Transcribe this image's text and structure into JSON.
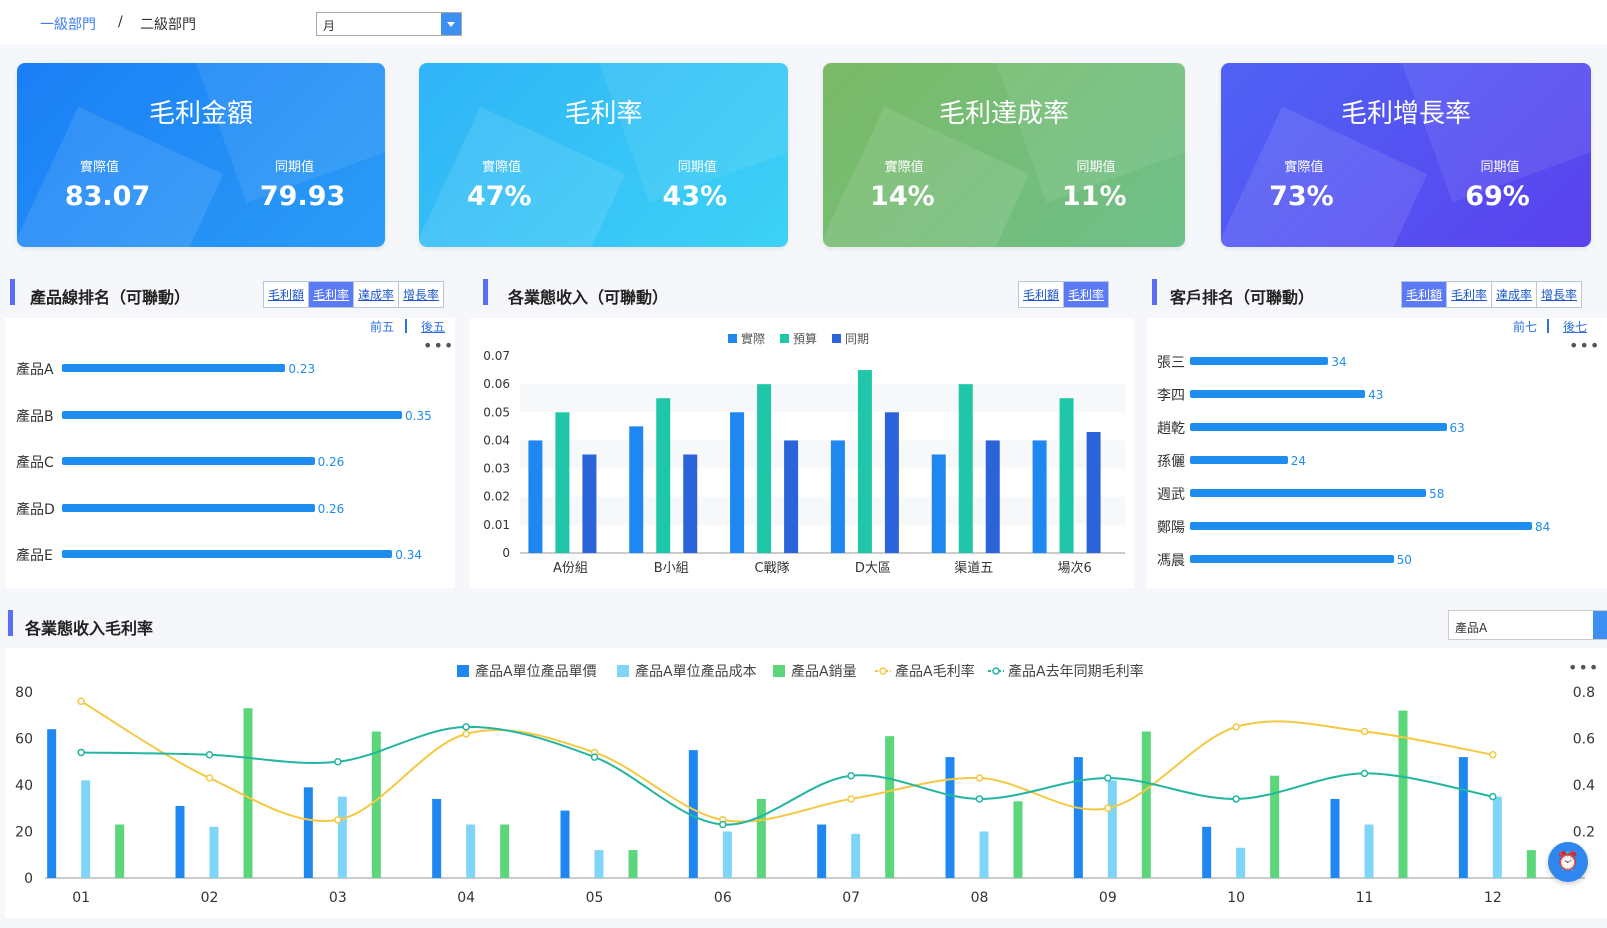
{
  "breadcrumb": {
    "level1": "一級部門",
    "separator": "/",
    "level2": "二級部門"
  },
  "period_select": {
    "value": "月"
  },
  "kpis": [
    {
      "title": "毛利金額",
      "actual_label": "實際值",
      "actual": "83.07",
      "prior_label": "同期值",
      "prior": "79.93",
      "color_from": "#1a7ff5",
      "color_to": "#2b9cf7"
    },
    {
      "title": "毛利率",
      "actual_label": "實際值",
      "actual": "47%",
      "prior_label": "同期值",
      "prior": "43%",
      "color_from": "#2fb4f7",
      "color_to": "#3dd2f5"
    },
    {
      "title": "毛利達成率",
      "actual_label": "實際值",
      "actual": "14%",
      "prior_label": "同期值",
      "prior": "11%",
      "color_from": "#7aba66",
      "color_to": "#6fc08a"
    },
    {
      "title": "毛利增長率",
      "actual_label": "實際值",
      "actual": "73%",
      "prior_label": "同期值",
      "prior": "69%",
      "color_from": "#4f63f5",
      "color_to": "#5a42ee"
    }
  ],
  "product_rank": {
    "title": "產品線排名（可聯動）",
    "tabs": [
      "毛利額",
      "毛利率",
      "達成率",
      "增長率"
    ],
    "active_tab": 1,
    "link_top": "前五",
    "link_bottom": "後五",
    "menu": "•••",
    "chart_data": {
      "type": "bar",
      "orientation": "horizontal",
      "categories": [
        "產品A",
        "產品B",
        "產品C",
        "產品D",
        "產品E"
      ],
      "values": [
        0.23,
        0.35,
        0.26,
        0.26,
        0.34
      ],
      "value_labels": [
        "0.23",
        "0.35",
        "0.26",
        "0.26",
        "0.34"
      ]
    }
  },
  "business_income": {
    "title": "各業態收入（可聯動）",
    "tabs": [
      "毛利額",
      "毛利率"
    ],
    "active_tab": 1,
    "chart_data": {
      "type": "bar",
      "categories": [
        "A份組",
        "B小組",
        "C戰隊",
        "D大區",
        "渠道五",
        "場次6"
      ],
      "series": [
        {
          "name": "實際",
          "color": "#1e88f0",
          "values": [
            0.04,
            0.045,
            0.05,
            0.04,
            0.035,
            0.04
          ]
        },
        {
          "name": "預算",
          "color": "#1fc7a8",
          "values": [
            0.05,
            0.055,
            0.06,
            0.065,
            0.06,
            0.055
          ]
        },
        {
          "name": "同期",
          "color": "#2b63d9",
          "values": [
            0.035,
            0.035,
            0.04,
            0.05,
            0.04,
            0.043
          ]
        }
      ],
      "ylim": [
        0,
        0.07
      ],
      "yticks": [
        "0",
        "0.01",
        "0.02",
        "0.03",
        "0.04",
        "0.05",
        "0.06",
        "0.07"
      ]
    }
  },
  "customer_rank": {
    "title": "客戶排名（可聯動）",
    "tabs": [
      "毛利額",
      "毛利率",
      "達成率",
      "增長率"
    ],
    "active_tab": 0,
    "link_top": "前七",
    "link_bottom": "後七",
    "menu": "•••",
    "chart_data": {
      "type": "bar",
      "orientation": "horizontal",
      "categories": [
        "張三",
        "李四",
        "趙乾",
        "孫儷",
        "週武",
        "鄭陽",
        "馮晨"
      ],
      "values": [
        34,
        43,
        63,
        24,
        58,
        84,
        50
      ],
      "value_labels": [
        "34",
        "43",
        "63",
        "24",
        "58",
        "84",
        "50"
      ]
    }
  },
  "margin_section": {
    "title": "各業態收入毛利率",
    "product_select": "產品A",
    "menu": "•••",
    "chart_data": {
      "type": "bar",
      "categories": [
        "01",
        "02",
        "03",
        "04",
        "05",
        "06",
        "07",
        "08",
        "09",
        "10",
        "11",
        "12"
      ],
      "series": [
        {
          "name": "產品A單位產品單價",
          "kind": "bar",
          "axis": "left",
          "color": "#1e88f0",
          "values": [
            64,
            31,
            39,
            34,
            29,
            55,
            23,
            52,
            52,
            22,
            34,
            52
          ]
        },
        {
          "name": "產品A單位產品成本",
          "kind": "bar",
          "axis": "left",
          "color": "#7fd4f7",
          "values": [
            42,
            22,
            35,
            23,
            12,
            20,
            19,
            20,
            42,
            13,
            23,
            35
          ]
        },
        {
          "name": "產品A銷量",
          "kind": "bar",
          "axis": "left",
          "color": "#5cd67a",
          "values": [
            23,
            73,
            63,
            23,
            12,
            34,
            61,
            33,
            63,
            44,
            72,
            12
          ]
        },
        {
          "name": "產品A毛利率",
          "kind": "line",
          "axis": "right",
          "color": "#f5c842",
          "values": [
            0.76,
            0.43,
            0.25,
            0.62,
            0.54,
            0.25,
            0.34,
            0.43,
            0.3,
            0.65,
            0.63,
            0.53
          ]
        },
        {
          "name": "產品A去年同期毛利率",
          "kind": "line",
          "axis": "right",
          "color": "#22b5a0",
          "values": [
            0.54,
            0.53,
            0.5,
            0.65,
            0.52,
            0.23,
            0.44,
            0.34,
            0.43,
            0.34,
            0.45,
            0.35
          ]
        }
      ],
      "ylim_left": [
        0,
        80
      ],
      "yticks_left": [
        "0",
        "20",
        "40",
        "60",
        "80"
      ],
      "ylim_right": [
        0,
        0.8
      ],
      "yticks_right": [
        "0.2",
        "0.4",
        "0.6",
        "0.8"
      ],
      "legend_position": "top-center"
    }
  },
  "fab_icon": "alarm-icon"
}
